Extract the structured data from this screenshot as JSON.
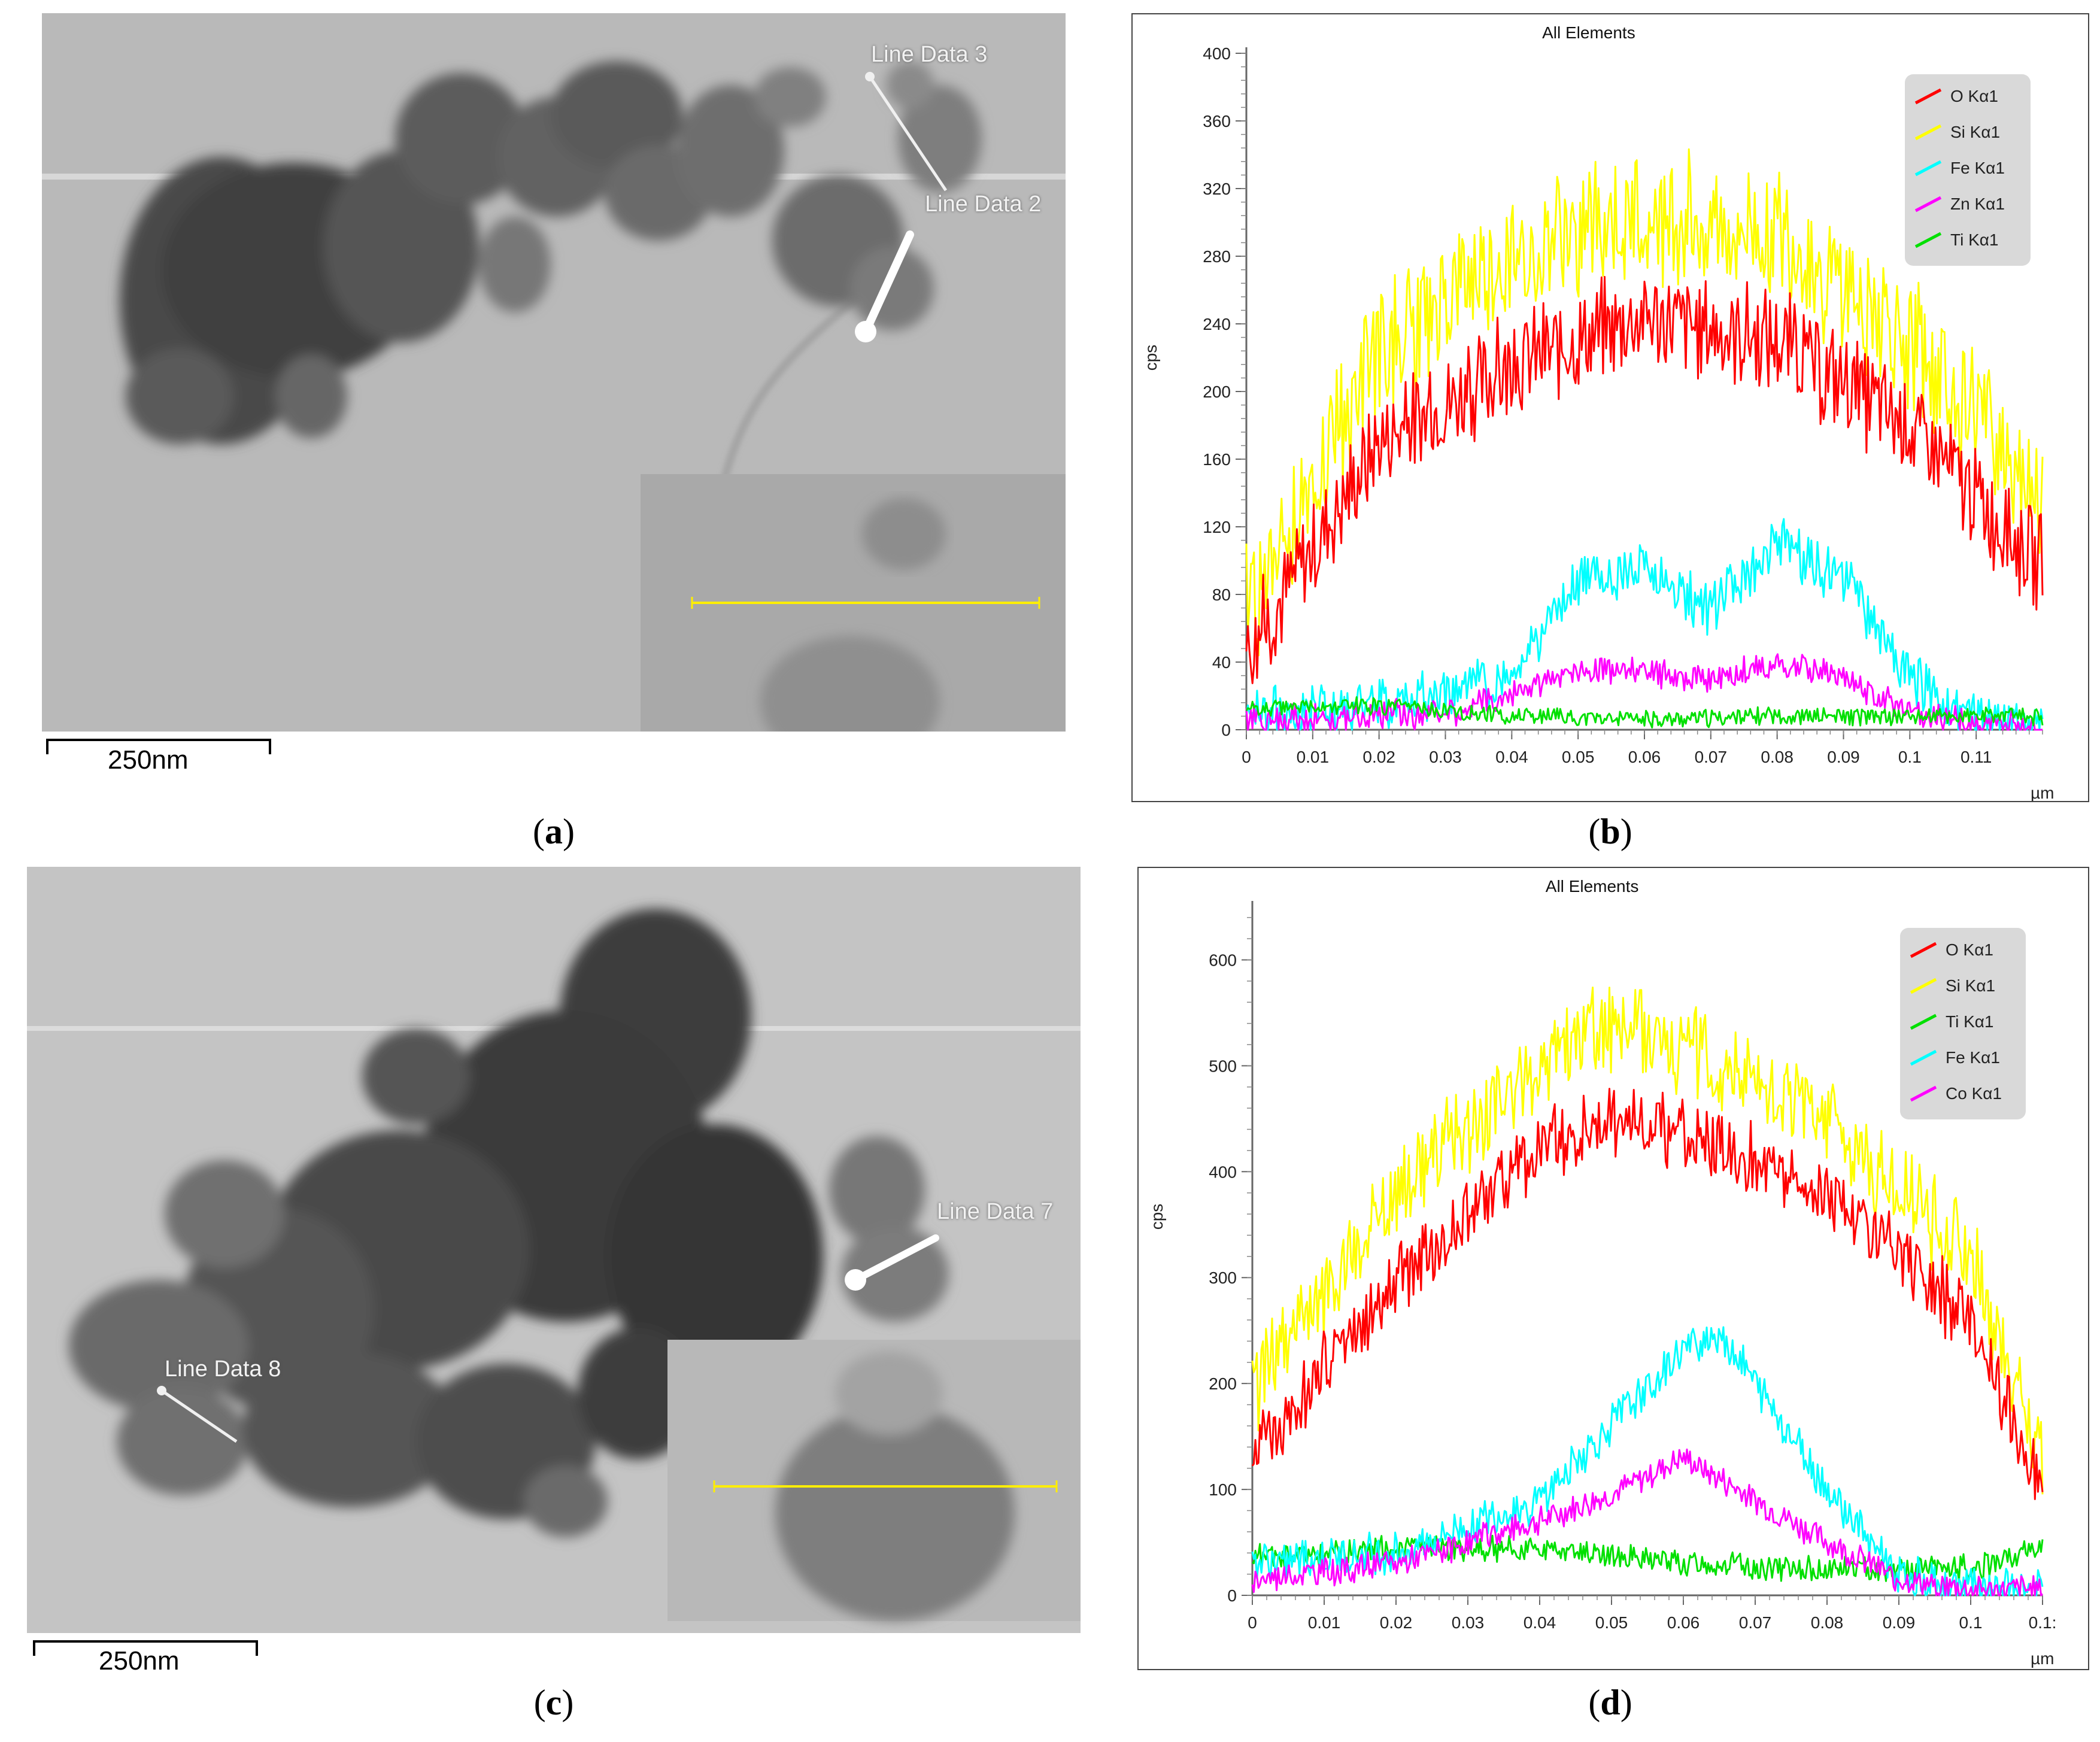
{
  "panels": {
    "a": {
      "caption": "a",
      "scale_label": "250nm",
      "labels": [
        "Line Data 3",
        "Line Data 2"
      ]
    },
    "b": {
      "caption": "b"
    },
    "c": {
      "caption": "c",
      "scale_label": "250nm",
      "labels": [
        "Line Data 7",
        "Line Data 8"
      ]
    },
    "d": {
      "caption": "d"
    }
  },
  "colors": {
    "O": "#ff0000",
    "Si": "#ffff00",
    "Fe": "#00ffff",
    "Zn": "#ff00ff",
    "Co": "#ff00ff",
    "Ti": "#00e000"
  },
  "chart_data": [
    {
      "type": "line",
      "title": "All Elements",
      "ylabel": "cps",
      "xlabel": "µm",
      "xlim": [
        0,
        0.12
      ],
      "ylim": [
        0,
        400
      ],
      "x_ticks": [
        "0",
        "0.01",
        "0.02",
        "0.03",
        "0.04",
        "0.05",
        "0.06",
        "0.07",
        "0.08",
        "0.09",
        "0.1",
        "0.11"
      ],
      "y_ticks": [
        "0",
        "40",
        "80",
        "120",
        "160",
        "200",
        "240",
        "280",
        "320",
        "360",
        "400"
      ],
      "legend": "top-right",
      "series": [
        {
          "name": "O Kα1",
          "key": "O",
          "color": "#ff0000",
          "profile": {
            "x": [
              0,
              0.02,
              0.04,
              0.06,
              0.08,
              0.1,
              0.12
            ],
            "y": [
              45,
              170,
              215,
              245,
              230,
              180,
              95
            ]
          },
          "noise": 35
        },
        {
          "name": "Si Kα1",
          "key": "Si",
          "color": "#ffff00",
          "profile": {
            "x": [
              0,
              0.02,
              0.04,
              0.06,
              0.08,
              0.1,
              0.12
            ],
            "y": [
              70,
              225,
              280,
              305,
              290,
              230,
              140
            ]
          },
          "noise": 45
        },
        {
          "name": "Fe Kα1",
          "key": "Fe",
          "color": "#00ffff",
          "profile": {
            "x": [
              0,
              0.02,
              0.04,
              0.05,
              0.06,
              0.07,
              0.08,
              0.09,
              0.1,
              0.11,
              0.12
            ],
            "y": [
              10,
              15,
              30,
              90,
              95,
              70,
              110,
              90,
              30,
              5,
              3
            ]
          },
          "noise": 18
        },
        {
          "name": "Zn Kα1",
          "key": "Zn",
          "color": "#ff00ff",
          "profile": {
            "x": [
              0,
              0.03,
              0.04,
              0.05,
              0.06,
              0.07,
              0.08,
              0.09,
              0.1,
              0.11,
              0.12
            ],
            "y": [
              5,
              10,
              20,
              35,
              35,
              30,
              40,
              30,
              10,
              3,
              2
            ]
          },
          "noise": 10
        },
        {
          "name": "Ti Kα1",
          "key": "Ti",
          "color": "#00e000",
          "profile": {
            "x": [
              0,
              0.02,
              0.04,
              0.06,
              0.08,
              0.1,
              0.12
            ],
            "y": [
              12,
              14,
              8,
              6,
              8,
              8,
              8
            ]
          },
          "noise": 6
        }
      ]
    },
    {
      "type": "line",
      "title": "All Elements",
      "ylabel": "cps",
      "xlabel": "µm",
      "xlim": [
        0,
        0.11
      ],
      "ylim": [
        0,
        650
      ],
      "x_ticks": [
        "0",
        "0.01",
        "0.02",
        "0.03",
        "0.04",
        "0.05",
        "0.06",
        "0.07",
        "0.08",
        "0.09",
        "0.1",
        "0.1:"
      ],
      "y_ticks": [
        "0",
        "100",
        "200",
        "300",
        "400",
        "500",
        "600"
      ],
      "legend": "top-right",
      "series": [
        {
          "name": "O Kα1",
          "key": "O",
          "color": "#ff0000",
          "profile": {
            "x": [
              0,
              0.02,
              0.04,
              0.05,
              0.06,
              0.08,
              0.1,
              0.11
            ],
            "y": [
              130,
              300,
              420,
              450,
              440,
              380,
              260,
              100
            ]
          },
          "noise": 40
        },
        {
          "name": "Si Kα1",
          "key": "Si",
          "color": "#ffff00",
          "profile": {
            "x": [
              0,
              0.02,
              0.04,
              0.05,
              0.06,
              0.08,
              0.1,
              0.11
            ],
            "y": [
              190,
              380,
              500,
              540,
              520,
              450,
              320,
              120
            ]
          },
          "noise": 50
        },
        {
          "name": "Ti Kα1",
          "key": "Ti",
          "color": "#00e000",
          "profile": {
            "x": [
              0,
              0.02,
              0.04,
              0.06,
              0.08,
              0.1,
              0.11
            ],
            "y": [
              35,
              45,
              45,
              30,
              25,
              25,
              45
            ]
          },
          "noise": 14
        },
        {
          "name": "Fe Kα1",
          "key": "Fe",
          "color": "#00ffff",
          "profile": {
            "x": [
              0,
              0.02,
              0.04,
              0.05,
              0.06,
              0.065,
              0.07,
              0.08,
              0.09,
              0.1,
              0.11
            ],
            "y": [
              30,
              40,
              90,
              160,
              230,
              250,
              200,
              100,
              20,
              8,
              5
            ]
          },
          "noise": 22
        },
        {
          "name": "Co Kα1",
          "key": "Co",
          "color": "#ff00ff",
          "profile": {
            "x": [
              0,
              0.02,
              0.04,
              0.05,
              0.06,
              0.07,
              0.08,
              0.09,
              0.1,
              0.11
            ],
            "y": [
              15,
              30,
              70,
              95,
              130,
              90,
              50,
              15,
              5,
              5
            ]
          },
          "noise": 15
        }
      ]
    }
  ]
}
